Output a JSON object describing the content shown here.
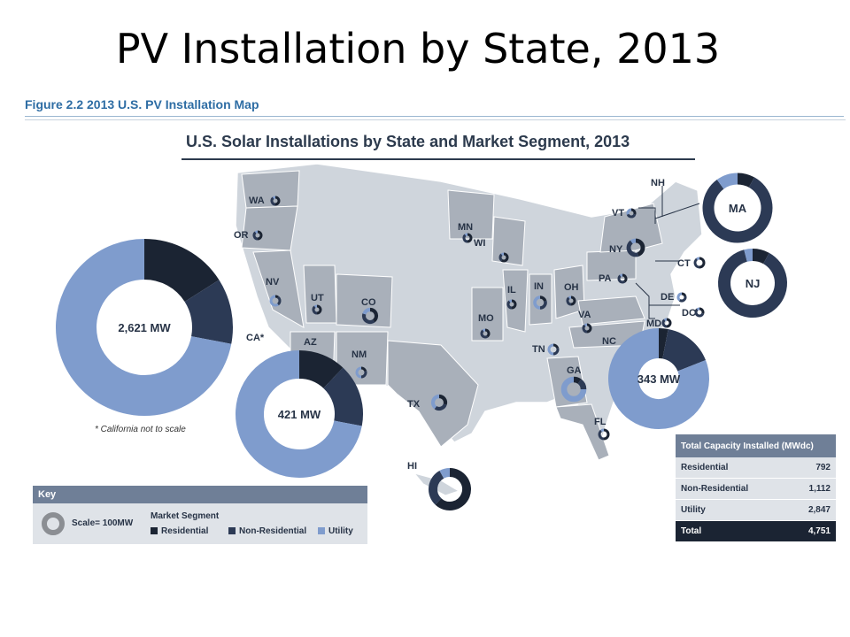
{
  "slide_title": "PV Installation by State, 2013",
  "figure_caption": "Figure 2.2  2013 U.S. PV Installation Map",
  "map_title": "U.S. Solar Installations by State and Market Segment, 2013",
  "callouts": {
    "ca": "2,621 MW",
    "az": "421 MW",
    "nc": "343 MW"
  },
  "note": "* California not to scale",
  "states": [
    "WA",
    "OR",
    "NV",
    "UT",
    "CO",
    "CA*",
    "AZ",
    "NM",
    "TX",
    "HI",
    "MN",
    "WI",
    "IL",
    "IN",
    "OH",
    "MO",
    "TN",
    "GA",
    "FL",
    "PA",
    "NY",
    "VT",
    "NH",
    "MA",
    "CT",
    "NJ",
    "DE",
    "DC",
    "MD",
    "VA",
    "NC"
  ],
  "key": {
    "title": "Key",
    "scale_label": "Scale= 100MW",
    "segment_title": "Market Segment",
    "segments": [
      "Residential",
      "Non-Residential",
      "Utility"
    ]
  },
  "colors": {
    "residential": "#1b2433",
    "non_residential": "#2c3a55",
    "utility": "#7f9ccd",
    "land": "#cfd5dc",
    "land_dark": "#a9b0ba"
  },
  "table": {
    "header": "Total Capacity Installed (MWdc)",
    "rows": [
      {
        "label": "Residential",
        "value": "792"
      },
      {
        "label": "Non-Residential",
        "value": "1,112"
      },
      {
        "label": "Utility",
        "value": "2,847"
      }
    ],
    "total": {
      "label": "Total",
      "value": "4,751"
    }
  },
  "chart_data": {
    "type": "pie",
    "title": "U.S. Solar Installations by State and Market Segment, 2013",
    "donuts": [
      {
        "state": "CA*",
        "total": "2,621 MW",
        "residential": 0.16,
        "non_residential": 0.12,
        "utility": 0.72
      },
      {
        "state": "AZ",
        "total": "421 MW",
        "residential": 0.12,
        "non_residential": 0.16,
        "utility": 0.72
      },
      {
        "state": "NC",
        "total": "343 MW",
        "residential": 0.03,
        "non_residential": 0.16,
        "utility": 0.81
      },
      {
        "state": "MA",
        "residential": 0.08,
        "non_residential": 0.82,
        "utility": 0.1
      },
      {
        "state": "NJ",
        "residential": 0.08,
        "non_residential": 0.88,
        "utility": 0.04
      },
      {
        "state": "HI",
        "residential": 0.62,
        "non_residential": 0.3,
        "utility": 0.08
      }
    ]
  }
}
